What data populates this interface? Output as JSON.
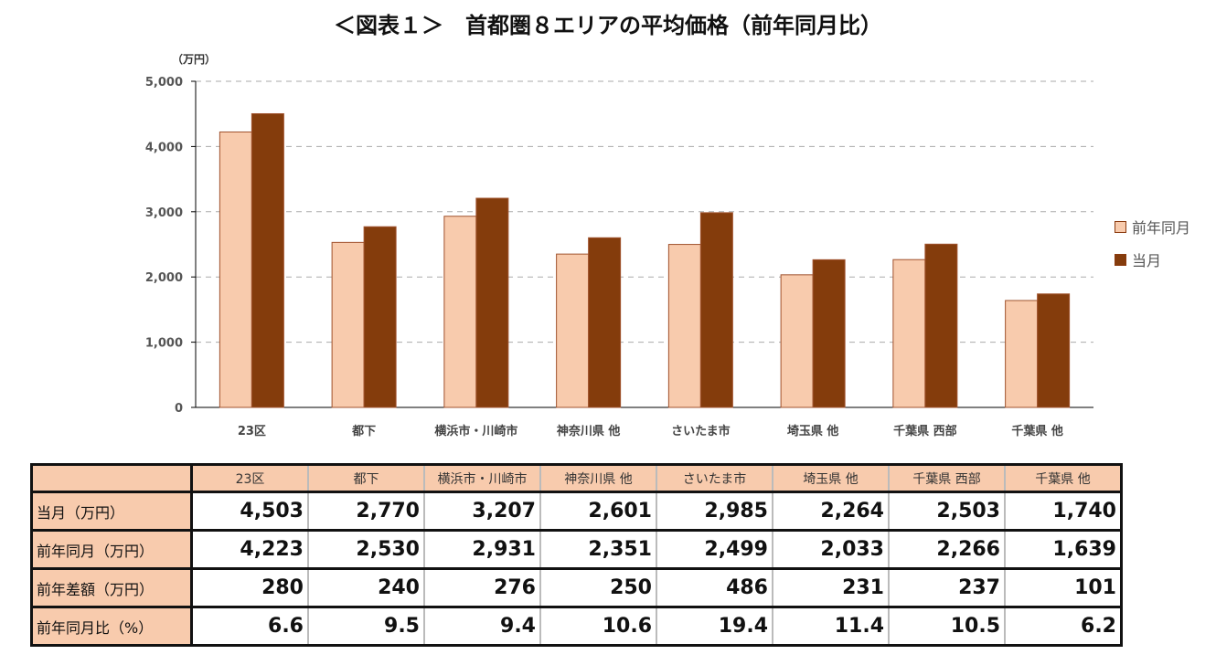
{
  "chart_data": {
    "type": "bar",
    "title": "＜図表１＞　首都圏８エリアの平均価格（前年同月比）",
    "ylabel": "（万円）",
    "ylim": [
      0,
      5000
    ],
    "yticks": [
      "0",
      "1,000",
      "2,000",
      "3,000",
      "4,000",
      "5,000"
    ],
    "grid": true,
    "legend_position": "right",
    "categories": [
      "23区",
      "都下",
      "横浜市・川崎市",
      "神奈川県 他",
      "さいたま市",
      "埼玉県 他",
      "千葉県 西部",
      "千葉県 他"
    ],
    "series": [
      {
        "name": "前年同月",
        "color": "#f8cbad",
        "values": [
          4223,
          2530,
          2931,
          2351,
          2499,
          2033,
          2266,
          1639
        ]
      },
      {
        "name": "当月",
        "color": "#843c0c",
        "values": [
          4503,
          2770,
          3207,
          2601,
          2985,
          2264,
          2503,
          1740
        ]
      }
    ]
  },
  "table": {
    "rows": [
      {
        "label": "当月（万円）",
        "values": [
          "4,503",
          "2,770",
          "3,207",
          "2,601",
          "2,985",
          "2,264",
          "2,503",
          "1,740"
        ]
      },
      {
        "label": "前年同月（万円）",
        "values": [
          "4,223",
          "2,530",
          "2,931",
          "2,351",
          "2,499",
          "2,033",
          "2,266",
          "1,639"
        ]
      },
      {
        "label": "前年差額（万円）",
        "values": [
          "280",
          "240",
          "276",
          "250",
          "486",
          "231",
          "237",
          "101"
        ]
      },
      {
        "label": "前年同月比（%）",
        "values": [
          "6.6",
          "9.5",
          "9.4",
          "10.6",
          "19.4",
          "11.4",
          "10.5",
          "6.2"
        ]
      }
    ]
  }
}
